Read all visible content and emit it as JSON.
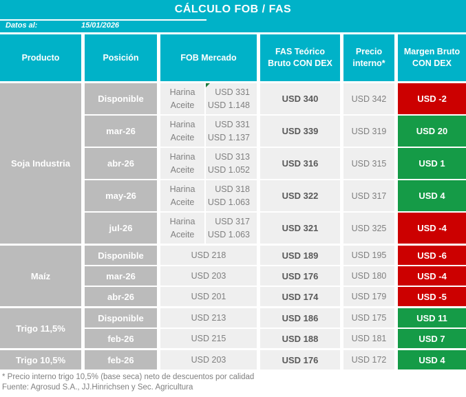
{
  "colors": {
    "accent": "#00b2c8",
    "negative": "#cc0000",
    "positive": "#159b47",
    "cell_gray": "#bbbbbb",
    "cell_light": "#efefef",
    "text_muted": "#7f7f7f",
    "text_dark": "#595959",
    "comment_green": "#1e7a3c"
  },
  "header": {
    "title": "CÁLCULO FOB / FAS",
    "meta_label": "Datos al:",
    "meta_date": "15/01/2026"
  },
  "columns": {
    "producto": "Producto",
    "posicion": "Posición",
    "fob": "FOB Mercado",
    "fas": "FAS Teórico Bruto CON DEX",
    "precio": "Precio interno*",
    "margen": "Margen Bruto CON DEX"
  },
  "fob_sublabels": {
    "harina": "Harina",
    "aceite": "Aceite"
  },
  "products": [
    {
      "name": "Soja Industria",
      "rows": [
        {
          "posicion": "Disponible",
          "fob_harina": "USD 331",
          "fob_aceite": "USD 1.148",
          "fas": "USD 340",
          "precio": "USD 342",
          "margen": "USD -2"
        },
        {
          "posicion": "mar-26",
          "fob_harina": "USD 331",
          "fob_aceite": "USD 1.137",
          "fas": "USD 339",
          "precio": "USD 319",
          "margen": "USD 20"
        },
        {
          "posicion": "abr-26",
          "fob_harina": "USD 313",
          "fob_aceite": "USD 1.052",
          "fas": "USD 316",
          "precio": "USD 315",
          "margen": "USD 1"
        },
        {
          "posicion": "may-26",
          "fob_harina": "USD 318",
          "fob_aceite": "USD 1.063",
          "fas": "USD 322",
          "precio": "USD 317",
          "margen": "USD 4"
        },
        {
          "posicion": "jul-26",
          "fob_harina": "USD 317",
          "fob_aceite": "USD 1.063",
          "fas": "USD 321",
          "precio": "USD 325",
          "margen": "USD -4"
        }
      ]
    },
    {
      "name": "Maíz",
      "rows": [
        {
          "posicion": "Disponible",
          "fob": "USD 218",
          "fas": "USD 189",
          "precio": "USD 195",
          "margen": "USD -6"
        },
        {
          "posicion": "mar-26",
          "fob": "USD 203",
          "fas": "USD 176",
          "precio": "USD 180",
          "margen": "USD -4"
        },
        {
          "posicion": "abr-26",
          "fob": "USD 201",
          "fas": "USD 174",
          "precio": "USD 179",
          "margen": "USD -5"
        }
      ]
    },
    {
      "name": "Trigo 11,5%",
      "rows": [
        {
          "posicion": "Disponible",
          "fob": "USD 213",
          "fas": "USD 186",
          "precio": "USD 175",
          "margen": "USD 11"
        },
        {
          "posicion": "feb-26",
          "fob": "USD 215",
          "fas": "USD 188",
          "precio": "USD 181",
          "margen": "USD 7"
        }
      ]
    },
    {
      "name": "Trigo 10,5%",
      "rows": [
        {
          "posicion": "feb-26",
          "fob": "USD 203",
          "fas": "USD 176",
          "precio": "USD 172",
          "margen": "USD 4"
        }
      ]
    }
  ],
  "footnotes": {
    "note": "* Precio interno trigo 10,5% (base seca) neto de descuentos por calidad",
    "source": "Fuente: Agrosud S.A., JJ.Hinrichsen y Sec. Agricultura"
  }
}
